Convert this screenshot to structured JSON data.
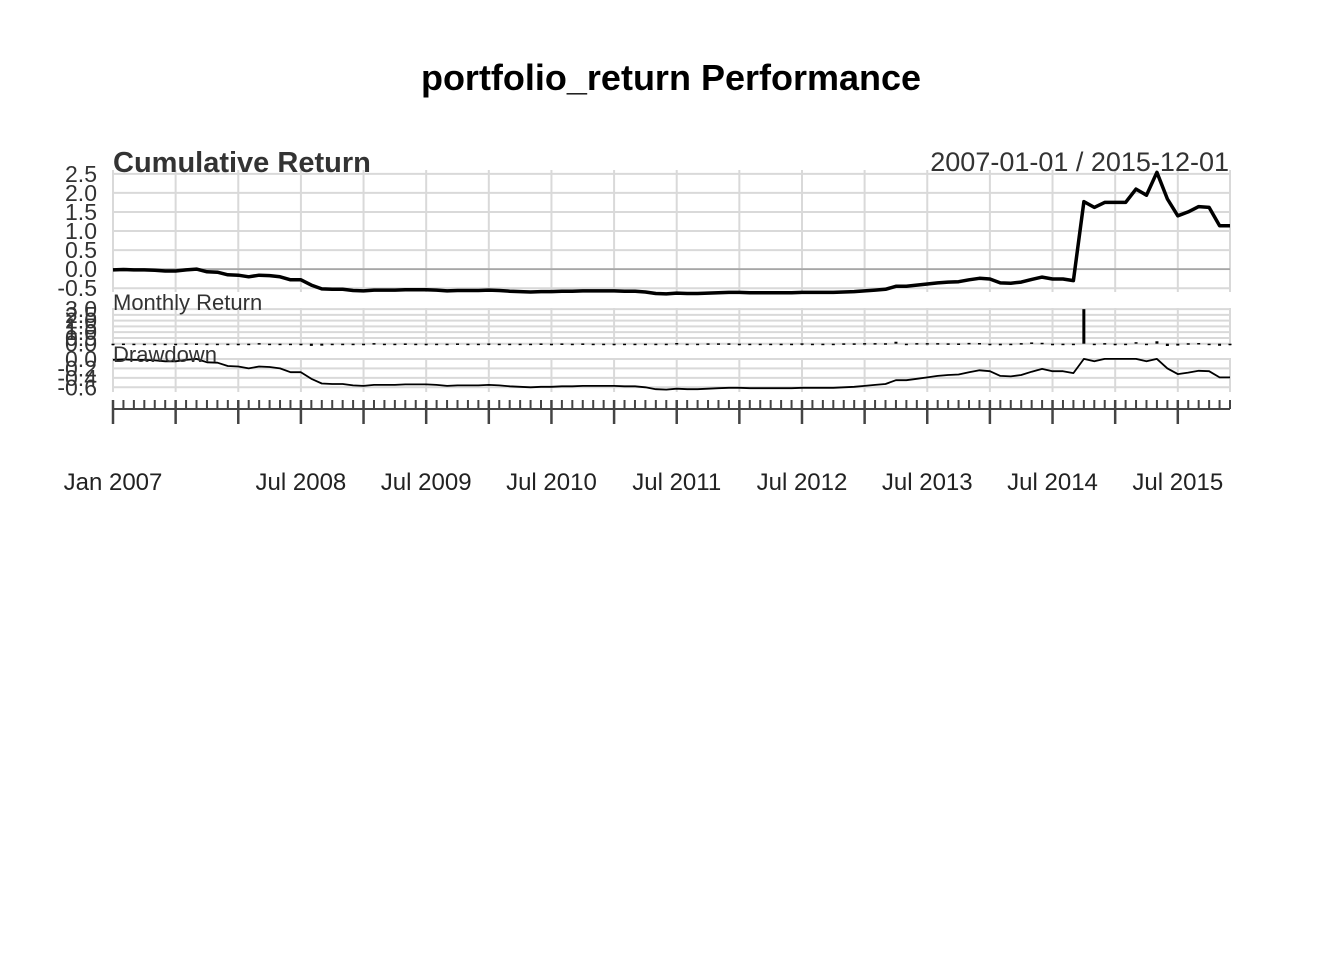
{
  "title": "portfolio_return Performance",
  "colors": {
    "line": "#000000",
    "grid": "#d9d9d9",
    "zero_line": "#9e9e9e",
    "text": "#333333"
  },
  "chart_data": {
    "type": "line",
    "title": "portfolio_return Performance",
    "date_range": "2007-01-01 / 2015-12-01",
    "x_range": [
      "2007-01",
      "2015-12"
    ],
    "x_tick_labels": [
      {
        "label": "Jan 2007",
        "date": "2007-01"
      },
      {
        "label": "Jul 2008",
        "date": "2008-07"
      },
      {
        "label": "Jul 2009",
        "date": "2009-07"
      },
      {
        "label": "Jul 2010",
        "date": "2010-07"
      },
      {
        "label": "Jul 2011",
        "date": "2011-07"
      },
      {
        "label": "Jul 2012",
        "date": "2012-07"
      },
      {
        "label": "Jul 2013",
        "date": "2013-07"
      },
      {
        "label": "Jul 2014",
        "date": "2014-07"
      },
      {
        "label": "Jul 2015",
        "date": "2015-07"
      }
    ],
    "panels": [
      {
        "name": "cumulative",
        "title": "Cumulative Return",
        "type": "line",
        "ylim": [
          -0.6,
          2.6
        ],
        "yticks": [
          "2.5",
          "2.0",
          "1.5",
          "1.0",
          "0.5",
          "0.0",
          "-0.5"
        ],
        "ytick_values": [
          2.5,
          2.0,
          1.5,
          1.0,
          0.5,
          0.0,
          -0.5
        ],
        "zero_line": true,
        "grid": true,
        "series": [
          {
            "x": [
              "2007-01",
              "2007-02",
              "2007-03",
              "2007-04",
              "2007-05",
              "2007-06",
              "2007-07",
              "2007-08",
              "2007-09",
              "2007-10",
              "2007-11",
              "2007-12",
              "2008-01",
              "2008-02",
              "2008-03",
              "2008-04",
              "2008-05",
              "2008-06",
              "2008-07",
              "2008-08",
              "2008-09",
              "2008-10",
              "2008-11",
              "2008-12",
              "2009-01",
              "2009-02",
              "2009-03",
              "2009-04",
              "2009-05",
              "2009-06",
              "2009-07",
              "2009-08",
              "2009-09",
              "2009-10",
              "2009-11",
              "2009-12",
              "2010-01",
              "2010-02",
              "2010-03",
              "2010-04",
              "2010-05",
              "2010-06",
              "2010-07",
              "2010-08",
              "2010-09",
              "2010-10",
              "2010-11",
              "2010-12",
              "2011-01",
              "2011-02",
              "2011-03",
              "2011-04",
              "2011-05",
              "2011-06",
              "2011-07",
              "2011-08",
              "2011-09",
              "2011-10",
              "2011-11",
              "2011-12",
              "2012-01",
              "2012-02",
              "2012-03",
              "2012-04",
              "2012-05",
              "2012-06",
              "2012-07",
              "2012-08",
              "2012-09",
              "2012-10",
              "2012-11",
              "2012-12",
              "2013-01",
              "2013-02",
              "2013-03",
              "2013-04",
              "2013-05",
              "2013-06",
              "2013-07",
              "2013-08",
              "2013-09",
              "2013-10",
              "2013-11",
              "2013-12",
              "2014-01",
              "2014-02",
              "2014-03",
              "2014-04",
              "2014-05",
              "2014-06",
              "2014-07",
              "2014-08",
              "2014-09",
              "2014-10",
              "2014-11",
              "2014-12",
              "2015-01",
              "2015-02",
              "2015-03",
              "2015-04",
              "2015-05",
              "2015-06",
              "2015-07",
              "2015-08",
              "2015-09",
              "2015-10",
              "2015-11",
              "2015-12"
            ],
            "y": [
              -0.02,
              -0.01,
              -0.02,
              -0.02,
              -0.03,
              -0.05,
              -0.05,
              -0.02,
              0.0,
              -0.07,
              -0.08,
              -0.15,
              -0.16,
              -0.2,
              -0.16,
              -0.17,
              -0.2,
              -0.28,
              -0.28,
              -0.42,
              -0.52,
              -0.53,
              -0.53,
              -0.56,
              -0.57,
              -0.55,
              -0.55,
              -0.55,
              -0.54,
              -0.54,
              -0.54,
              -0.55,
              -0.57,
              -0.56,
              -0.56,
              -0.56,
              -0.55,
              -0.56,
              -0.58,
              -0.59,
              -0.6,
              -0.59,
              -0.59,
              -0.58,
              -0.58,
              -0.57,
              -0.57,
              -0.57,
              -0.57,
              -0.58,
              -0.58,
              -0.6,
              -0.64,
              -0.65,
              -0.63,
              -0.64,
              -0.64,
              -0.63,
              -0.62,
              -0.61,
              -0.61,
              -0.62,
              -0.62,
              -0.62,
              -0.62,
              -0.62,
              -0.61,
              -0.61,
              -0.61,
              -0.61,
              -0.6,
              -0.59,
              -0.57,
              -0.55,
              -0.53,
              -0.45,
              -0.45,
              -0.42,
              -0.39,
              -0.36,
              -0.34,
              -0.33,
              -0.28,
              -0.24,
              -0.26,
              -0.36,
              -0.37,
              -0.34,
              -0.27,
              -0.21,
              -0.26,
              -0.26,
              -0.3,
              1.77,
              1.62,
              1.75,
              1.75,
              1.75,
              2.1,
              1.94,
              2.54,
              1.84,
              1.4,
              1.5,
              1.64,
              1.62,
              1.14,
              1.14
            ]
          }
        ]
      },
      {
        "name": "monthly",
        "title": "Monthly Return",
        "type": "bar",
        "ylim": [
          -0.2,
          3.1
        ],
        "yticks": [
          "3.0",
          "2.5",
          "2.0",
          "1.5",
          "1.0",
          "0.5",
          "0.0"
        ],
        "ytick_values": [
          3.0,
          2.5,
          2.0,
          1.5,
          1.0,
          0.5,
          0.0
        ],
        "grid": true,
        "series": [
          {
            "x_ref": "cumulative",
            "values": [
              -0.02,
              0.01,
              -0.01,
              0.0,
              -0.01,
              -0.02,
              0.0,
              0.03,
              0.02,
              -0.07,
              -0.01,
              -0.08,
              -0.01,
              -0.05,
              0.05,
              -0.01,
              -0.04,
              -0.1,
              0.0,
              -0.19,
              -0.17,
              -0.02,
              0.0,
              -0.06,
              -0.02,
              0.05,
              0.0,
              0.0,
              0.02,
              0.0,
              0.0,
              -0.02,
              -0.04,
              0.02,
              0.0,
              0.0,
              0.02,
              -0.02,
              -0.05,
              -0.02,
              -0.02,
              0.02,
              0.0,
              0.02,
              0.0,
              0.02,
              0.0,
              0.0,
              0.0,
              -0.02,
              0.0,
              -0.05,
              -0.1,
              -0.03,
              0.06,
              -0.03,
              0.0,
              0.03,
              0.03,
              0.03,
              0.0,
              -0.03,
              0.0,
              0.0,
              0.0,
              0.0,
              0.03,
              0.0,
              0.0,
              0.0,
              0.03,
              0.03,
              0.05,
              0.05,
              0.04,
              0.17,
              0.0,
              0.05,
              0.05,
              0.05,
              0.03,
              0.02,
              0.07,
              0.06,
              -0.03,
              -0.14,
              -0.02,
              0.05,
              0.11,
              0.08,
              -0.06,
              0.0,
              -0.05,
              3.0,
              -0.05,
              0.05,
              0.0,
              0.0,
              0.13,
              -0.05,
              0.21,
              -0.2,
              -0.16,
              0.04,
              0.06,
              -0.01,
              -0.18,
              0.0
            ]
          }
        ]
      },
      {
        "name": "drawdown",
        "title": "Drawdown",
        "type": "line",
        "ylim": [
          -0.7,
          0.02
        ],
        "yticks": [
          "0.0",
          "-0.2",
          "-0.4",
          "-0.6"
        ],
        "ytick_values": [
          0.0,
          -0.2,
          -0.4,
          -0.6
        ],
        "grid": true,
        "series": [
          {
            "x_ref": "cumulative",
            "y": [
              -0.02,
              -0.01,
              -0.02,
              -0.02,
              -0.03,
              -0.05,
              -0.05,
              -0.02,
              0.0,
              -0.07,
              -0.08,
              -0.15,
              -0.16,
              -0.2,
              -0.16,
              -0.17,
              -0.2,
              -0.28,
              -0.28,
              -0.42,
              -0.52,
              -0.53,
              -0.53,
              -0.56,
              -0.57,
              -0.55,
              -0.55,
              -0.55,
              -0.54,
              -0.54,
              -0.54,
              -0.55,
              -0.57,
              -0.56,
              -0.56,
              -0.56,
              -0.55,
              -0.56,
              -0.58,
              -0.59,
              -0.6,
              -0.59,
              -0.59,
              -0.58,
              -0.58,
              -0.57,
              -0.57,
              -0.57,
              -0.57,
              -0.58,
              -0.58,
              -0.6,
              -0.64,
              -0.65,
              -0.63,
              -0.64,
              -0.64,
              -0.63,
              -0.62,
              -0.61,
              -0.61,
              -0.62,
              -0.62,
              -0.62,
              -0.62,
              -0.62,
              -0.61,
              -0.61,
              -0.61,
              -0.61,
              -0.6,
              -0.59,
              -0.57,
              -0.55,
              -0.53,
              -0.45,
              -0.45,
              -0.42,
              -0.39,
              -0.36,
              -0.34,
              -0.33,
              -0.28,
              -0.24,
              -0.26,
              -0.36,
              -0.37,
              -0.34,
              -0.27,
              -0.21,
              -0.26,
              -0.26,
              -0.3,
              0.0,
              -0.05,
              0.0,
              0.0,
              0.0,
              0.0,
              -0.05,
              0.0,
              -0.2,
              -0.32,
              -0.29,
              -0.25,
              -0.26,
              -0.39,
              -0.39
            ]
          }
        ]
      }
    ]
  }
}
